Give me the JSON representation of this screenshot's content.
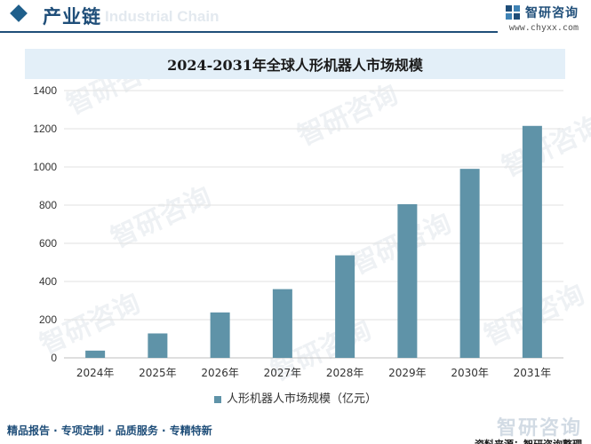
{
  "header": {
    "title": "产业链",
    "watermark": "Industrial Chain"
  },
  "brand": {
    "name": "智研咨询",
    "url": "www.chyxx.com"
  },
  "footer": {
    "tagline": "精品报告 · 专项定制 · 品质服务 · 专精特新",
    "brand": "智研咨询",
    "source": "资料来源：智研咨询整理"
  },
  "watermark_text": "智研咨询",
  "colors": {
    "bar": "#5f93a8",
    "accent": "#1f4e79",
    "title_band": "#e3eff8"
  },
  "chart_data": {
    "type": "bar",
    "title": "2024-2031年全球人形机器人市场规模",
    "categories": [
      "2024年",
      "2025年",
      "2026年",
      "2027年",
      "2028年",
      "2029年",
      "2030年",
      "2031年"
    ],
    "series": [
      {
        "name": "人形机器人市场规模（亿元）",
        "values": [
          38,
          128,
          238,
          360,
          537,
          805,
          990,
          1215
        ]
      }
    ],
    "xlabel": "",
    "ylabel": "",
    "ylim": [
      0,
      1400
    ],
    "yticks": [
      0,
      200,
      400,
      600,
      800,
      1000,
      1200,
      1400
    ],
    "grid": true,
    "legend": "bottom"
  }
}
